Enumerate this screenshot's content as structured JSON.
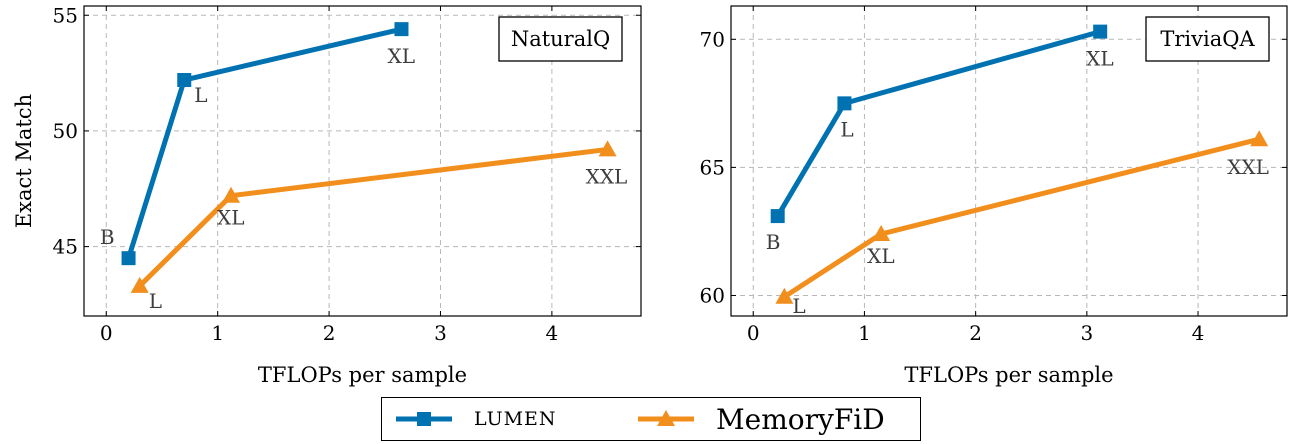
{
  "legend": {
    "items": [
      {
        "name": "LUMEN",
        "color": "#0072b2",
        "marker": "square"
      },
      {
        "name": "MemoryFiD",
        "color": "#f28e1c",
        "marker": "triangle"
      }
    ]
  },
  "chart_data": [
    {
      "type": "line",
      "title": "NaturalQ",
      "xlabel": "TFLOPs per sample",
      "ylabel": "Exact Match",
      "xlim": [
        -0.2,
        4.8
      ],
      "ylim": [
        42.0,
        55.4
      ],
      "xticks": [
        "0",
        "1",
        "2",
        "3",
        "4"
      ],
      "yticks": [
        "45",
        "50",
        "55"
      ],
      "grid": true,
      "series": [
        {
          "name": "LUMEN",
          "color": "#0072b2",
          "marker": "square",
          "points": [
            {
              "x": 0.2,
              "y": 44.5,
              "label": "B"
            },
            {
              "x": 0.7,
              "y": 52.2,
              "label": "L"
            },
            {
              "x": 2.65,
              "y": 54.4,
              "label": "XL"
            }
          ]
        },
        {
          "name": "MemoryFiD",
          "color": "#f28e1c",
          "marker": "triangle",
          "points": [
            {
              "x": 0.3,
              "y": 43.3,
              "label": "L"
            },
            {
              "x": 1.12,
              "y": 47.2,
              "label": "XL"
            },
            {
              "x": 4.5,
              "y": 49.2,
              "label": "XXL"
            }
          ]
        }
      ]
    },
    {
      "type": "line",
      "title": "TriviaQA",
      "xlabel": "TFLOPs per sample",
      "ylabel": "",
      "xlim": [
        -0.2,
        4.8
      ],
      "ylim": [
        59.2,
        71.3
      ],
      "xticks": [
        "0",
        "1",
        "2",
        "3",
        "4"
      ],
      "yticks": [
        "60",
        "65",
        "70"
      ],
      "grid": true,
      "series": [
        {
          "name": "LUMEN",
          "color": "#0072b2",
          "marker": "square",
          "points": [
            {
              "x": 0.22,
              "y": 63.1,
              "label": "B"
            },
            {
              "x": 0.82,
              "y": 67.5,
              "label": "L"
            },
            {
              "x": 3.12,
              "y": 70.3,
              "label": "XL"
            }
          ]
        },
        {
          "name": "MemoryFiD",
          "color": "#f28e1c",
          "marker": "triangle",
          "points": [
            {
              "x": 0.28,
              "y": 59.95,
              "label": "L"
            },
            {
              "x": 1.15,
              "y": 62.4,
              "label": "XL"
            },
            {
              "x": 4.55,
              "y": 66.1,
              "label": "XXL"
            }
          ]
        }
      ]
    }
  ]
}
